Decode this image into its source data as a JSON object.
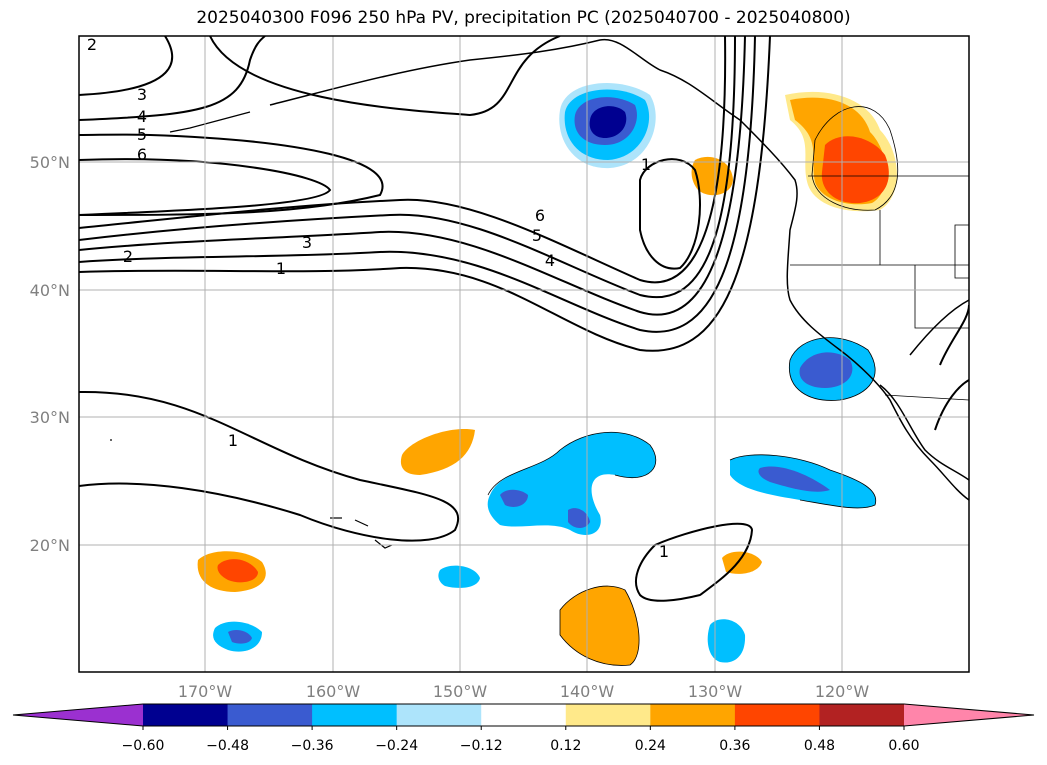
{
  "title": "2025040300 F096 250 hPa PV, precipitation PC (2025040700 - 2025040800)",
  "latitude_labels": [
    "50°N",
    "40°N",
    "30°N",
    "20°N"
  ],
  "longitude_labels": [
    "170°W",
    "160°W",
    "150°W",
    "140°W",
    "130°W",
    "120°W"
  ],
  "colorbar": {
    "tick_labels": [
      "−0.60",
      "−0.48",
      "−0.36",
      "−0.24",
      "−0.12",
      "0.12",
      "0.24",
      "0.36",
      "0.48",
      "0.60"
    ],
    "colors": [
      "#9b30d0",
      "#000090",
      "#3a5bd0",
      "#00bfff",
      "#ade4fb",
      "#ffffff",
      "#ffe98a",
      "#ffa500",
      "#ff4500",
      "#b22222",
      "#ff85aa"
    ]
  },
  "contour_labels": [
    "2",
    "3",
    "4",
    "5",
    "6",
    "2",
    "3",
    "1",
    "6",
    "5",
    "4",
    "1",
    "1",
    "1"
  ],
  "colors": {
    "grid": "#b0b0b0",
    "coast": "#000000",
    "dark_blue": "#000090",
    "medium_blue": "#3a5bd0",
    "cyan": "#00bfff",
    "light_blue": "#ade4fb",
    "yellow": "#ffe98a",
    "orange": "#ffa500",
    "red_orange": "#ff4500"
  }
}
